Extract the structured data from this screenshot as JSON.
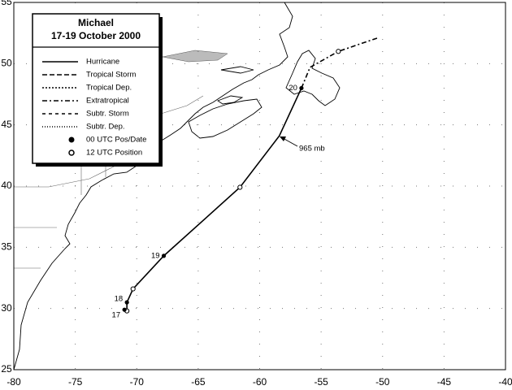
{
  "chart_data": {
    "type": "track",
    "title": "Michael",
    "subtitle": "17-19 October 2000",
    "xlim": [
      -80,
      -40
    ],
    "ylim": [
      25,
      55
    ],
    "xticks": [
      -80,
      -75,
      -70,
      -65,
      -60,
      -55,
      -50,
      -45,
      -40
    ],
    "yticks": [
      25,
      30,
      35,
      40,
      45,
      50,
      55
    ],
    "grid": true,
    "series": [
      {
        "name": "Hurricane",
        "color": "#000000",
        "dash": "none",
        "x": [
          -71.0,
          -70.8,
          -70.8,
          -70.3,
          -67.8,
          -61.6,
          -58.4,
          -56.6
        ],
        "y": [
          29.9,
          29.8,
          30.5,
          31.6,
          34.3,
          39.9,
          44.1,
          48.0
        ]
      },
      {
        "name": "Tropical Storm",
        "color": "#000000",
        "dash": "6 3",
        "x": [],
        "y": []
      },
      {
        "name": "Tropical Dep.",
        "color": "#000000",
        "dash": "2 2",
        "x": [],
        "y": []
      },
      {
        "name": "Extratropical",
        "color": "#000000",
        "dash": "6 3 2 3",
        "x": [
          -56.6,
          -55.9,
          -53.6,
          -50.4
        ],
        "y": [
          48.0,
          49.7,
          51.0,
          52.1
        ]
      },
      {
        "name": "Subtr. Storm",
        "color": "#000000",
        "dash": "4 4",
        "x": [],
        "y": []
      },
      {
        "name": "Subtr. Dep.",
        "color": "#000000",
        "dash": "1 2",
        "x": [],
        "y": []
      }
    ],
    "positions_00utc": {
      "name": "00 UTC Pos/Date",
      "x": [
        -71.0,
        -70.8,
        -67.8,
        -56.6
      ],
      "y": [
        29.9,
        30.5,
        34.3,
        48.0
      ],
      "labels": [
        "17",
        "18",
        "19",
        "20"
      ]
    },
    "positions_12utc": {
      "name": "12 UTC Position",
      "x": [
        -70.8,
        -70.3,
        -61.6,
        -53.6
      ],
      "y": [
        29.8,
        31.6,
        39.9,
        51.0
      ]
    },
    "annotation": "965 mb"
  }
}
